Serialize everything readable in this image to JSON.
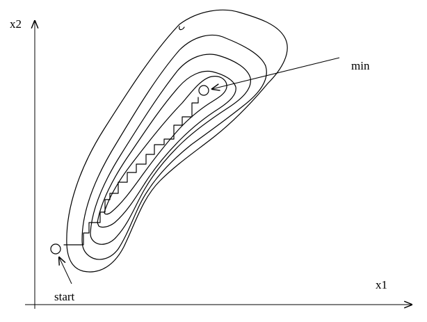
{
  "labels": {
    "x_axis": "x1",
    "y_axis": "x2",
    "min": "min",
    "start": "start"
  },
  "colors": {
    "ink": "#000000",
    "background": "#ffffff"
  },
  "contour_count": 5,
  "path_step_count": 13
}
